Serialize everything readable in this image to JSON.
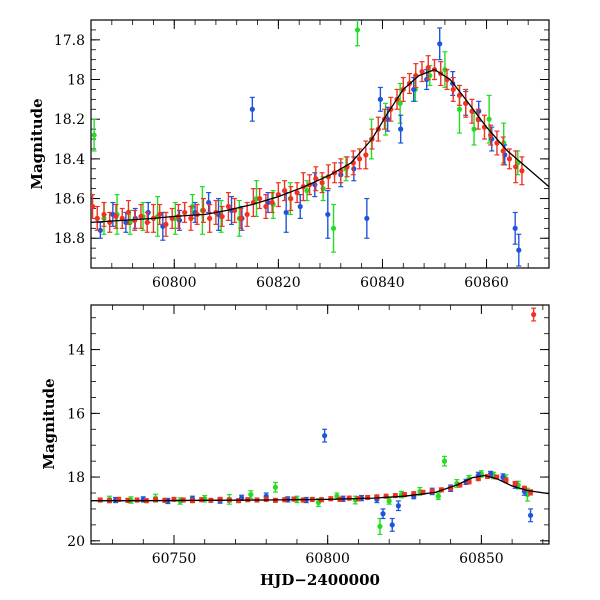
{
  "chart_data": [
    {
      "type": "scatter",
      "title": "",
      "xlabel": "",
      "ylabel": "Magnitude",
      "xlim": [
        60784,
        60872
      ],
      "ylim": [
        18.95,
        17.7
      ],
      "y_inverted": true,
      "grid": false,
      "legend": "none",
      "xticks": [
        60800,
        60820,
        60840,
        60860
      ],
      "xtick_labels": [
        "60800",
        "60820",
        "60840",
        "60860"
      ],
      "yticks": [
        17.8,
        18,
        18.2,
        18.4,
        18.6,
        18.8
      ],
      "ytick_labels": [
        "17.8",
        "18",
        "18.2",
        "18.4",
        "18.6",
        "18.8"
      ],
      "model_curve": {
        "color": "#000000",
        "x": [
          60784,
          60790,
          60796,
          60800,
          60806,
          60810,
          60815,
          60820,
          60825,
          60830,
          60834,
          60838,
          60841,
          60844,
          60847,
          60850,
          60853,
          60856,
          60860,
          60864,
          60868,
          60872
        ],
        "y": [
          18.72,
          18.71,
          18.7,
          18.69,
          18.68,
          18.66,
          18.63,
          18.59,
          18.54,
          18.48,
          18.42,
          18.3,
          18.17,
          18.05,
          17.98,
          17.95,
          18.0,
          18.1,
          18.24,
          18.36,
          18.45,
          18.54
        ]
      },
      "series": [
        {
          "color": "#22dd22",
          "x": [
            60784.6,
            60786.5,
            60789.0,
            60791.5,
            60794.0,
            60796.8,
            60800.2,
            60803.5,
            60805.4,
            60809.0,
            60812.5,
            60815.8,
            60819.0,
            60822.3,
            60825.5,
            60828.6,
            60830.6,
            60833.0,
            60835.2,
            60837.9,
            60840.6,
            60843.4,
            60846.3,
            60849.1,
            60852.0,
            60854.8,
            60857.6,
            60860.5,
            60863.3,
            60866.0
          ],
          "y": [
            18.28,
            18.7,
            18.68,
            18.72,
            18.69,
            18.69,
            18.7,
            18.64,
            18.66,
            18.69,
            18.7,
            18.6,
            18.63,
            18.6,
            18.56,
            18.55,
            18.75,
            18.45,
            17.75,
            18.3,
            18.2,
            18.12,
            18.05,
            17.98,
            17.95,
            18.15,
            18.25,
            18.2,
            18.32,
            18.42
          ],
          "err": [
            0.08,
            0.08,
            0.1,
            0.06,
            0.07,
            0.1,
            0.08,
            0.06,
            0.12,
            0.08,
            0.09,
            0.09,
            0.07,
            0.08,
            0.05,
            0.06,
            0.12,
            0.06,
            0.08,
            0.1,
            0.08,
            0.1,
            0.06,
            0.05,
            0.09,
            0.12,
            0.08,
            0.12,
            0.1,
            0.06
          ]
        },
        {
          "color": "#1f55dd",
          "x": [
            60785.8,
            60788.2,
            60790.7,
            60792.5,
            60795.0,
            60797.8,
            60801.0,
            60804.0,
            60806.6,
            60808.5,
            60811.0,
            60813.0,
            60815.0,
            60818.0,
            60821.5,
            60824.2,
            60827.0,
            60829.5,
            60832.0,
            60834.5,
            60837.0,
            60839.6,
            60841.0,
            60843.5,
            60846.0,
            60848.5,
            60851.0,
            60853.5,
            60856.0,
            60858.5,
            60861.0,
            60863.5,
            60865.5,
            60866.2
          ],
          "y": [
            18.76,
            18.68,
            18.72,
            18.7,
            18.67,
            18.74,
            18.71,
            18.67,
            18.62,
            18.68,
            18.66,
            18.7,
            18.15,
            18.62,
            18.67,
            18.64,
            18.53,
            18.68,
            18.48,
            18.45,
            18.7,
            18.1,
            18.2,
            18.25,
            18.05,
            18.0,
            17.82,
            18.02,
            18.12,
            18.16,
            18.3,
            18.38,
            18.75,
            18.86
          ],
          "err": [
            0.04,
            0.06,
            0.05,
            0.05,
            0.05,
            0.07,
            0.05,
            0.05,
            0.05,
            0.08,
            0.07,
            0.06,
            0.06,
            0.05,
            0.1,
            0.06,
            0.06,
            0.12,
            0.06,
            0.06,
            0.1,
            0.06,
            0.06,
            0.07,
            0.06,
            0.05,
            0.08,
            0.06,
            0.06,
            0.05,
            0.06,
            0.05,
            0.08,
            0.08
          ]
        },
        {
          "color": "#ee3322",
          "x": [
            60784.3,
            60785.2,
            60786.5,
            60787.6,
            60788.8,
            60790.0,
            60791.2,
            60792.4,
            60793.6,
            60794.8,
            60796.0,
            60797.2,
            60798.4,
            60799.6,
            60800.8,
            60802.0,
            60803.2,
            60804.4,
            60805.6,
            60806.8,
            60808.0,
            60809.2,
            60810.4,
            60811.6,
            60812.8,
            60814.0,
            60815.2,
            60816.4,
            60817.6,
            60818.8,
            60820.0,
            60821.2,
            60822.4,
            60823.6,
            60824.8,
            60826.0,
            60827.2,
            60828.4,
            60829.6,
            60830.8,
            60832.0,
            60833.2,
            60834.4,
            60835.6,
            60836.8,
            60838.0,
            60839.2,
            60840.4,
            60841.6,
            60842.8,
            60844.0,
            60845.2,
            60846.4,
            60847.6,
            60848.8,
            60850.0,
            60851.2,
            60852.4,
            60853.6,
            60854.8,
            60856.0,
            60857.2,
            60858.4,
            60859.6,
            60860.8,
            60862.0,
            60863.2,
            60864.4,
            60865.6,
            60866.8
          ],
          "y": [
            18.64,
            18.7,
            18.68,
            18.72,
            18.69,
            18.7,
            18.67,
            18.71,
            18.69,
            18.72,
            18.7,
            18.68,
            18.73,
            18.7,
            18.69,
            18.67,
            18.7,
            18.68,
            18.66,
            18.7,
            18.67,
            18.69,
            18.64,
            18.66,
            18.7,
            18.68,
            18.62,
            18.6,
            18.64,
            18.62,
            18.58,
            18.56,
            18.6,
            18.57,
            18.54,
            18.53,
            18.5,
            18.52,
            18.49,
            18.47,
            18.46,
            18.44,
            18.42,
            18.4,
            18.38,
            18.3,
            18.25,
            18.2,
            18.15,
            18.1,
            18.05,
            18.02,
            17.98,
            17.96,
            17.94,
            17.95,
            17.97,
            18.0,
            18.05,
            18.08,
            18.12,
            18.16,
            18.2,
            18.24,
            18.28,
            18.32,
            18.36,
            18.4,
            18.44,
            18.46
          ],
          "err": [
            0.06,
            0.06,
            0.06,
            0.05,
            0.06,
            0.05,
            0.06,
            0.05,
            0.06,
            0.05,
            0.07,
            0.05,
            0.06,
            0.05,
            0.06,
            0.05,
            0.06,
            0.05,
            0.06,
            0.07,
            0.06,
            0.05,
            0.07,
            0.06,
            0.05,
            0.06,
            0.07,
            0.05,
            0.06,
            0.05,
            0.06,
            0.05,
            0.06,
            0.05,
            0.07,
            0.05,
            0.06,
            0.05,
            0.06,
            0.05,
            0.06,
            0.05,
            0.06,
            0.05,
            0.07,
            0.05,
            0.06,
            0.05,
            0.06,
            0.05,
            0.06,
            0.05,
            0.06,
            0.05,
            0.06,
            0.05,
            0.06,
            0.05,
            0.06,
            0.05,
            0.07,
            0.06,
            0.05,
            0.06,
            0.05,
            0.06,
            0.07,
            0.05,
            0.08,
            0.07
          ]
        }
      ]
    },
    {
      "type": "scatter",
      "title": "",
      "xlabel": "HJD−2400000",
      "ylabel": "Magnitude",
      "xlim": [
        60723,
        60872
      ],
      "ylim": [
        20.1,
        12.6
      ],
      "y_inverted": true,
      "grid": false,
      "legend": "none",
      "xticks": [
        60750,
        60800,
        60850
      ],
      "xtick_labels": [
        "60750",
        "60800",
        "60850"
      ],
      "yticks": [
        14,
        16,
        18,
        20
      ],
      "ytick_labels": [
        "14",
        "16",
        "18",
        "20"
      ],
      "model_curve": {
        "color": "#000000",
        "x": [
          60723,
          60740,
          60760,
          60780,
          60800,
          60815,
          60825,
          60835,
          60842,
          60847,
          60851,
          60855,
          60860,
          60865,
          60872
        ],
        "y": [
          18.74,
          18.74,
          18.73,
          18.72,
          18.7,
          18.66,
          18.6,
          18.48,
          18.25,
          18.02,
          17.95,
          18.05,
          18.28,
          18.42,
          18.52
        ]
      },
      "series": [
        {
          "color": "#22dd22",
          "x": [
            60729,
            60736,
            60744,
            60752,
            60760,
            60768,
            60775,
            60783,
            60790,
            60797,
            60803,
            60809,
            60817,
            60820,
            60824,
            60830,
            60836,
            60838,
            60842,
            60846,
            60850,
            60854,
            60858,
            60862,
            60865
          ],
          "y": [
            18.7,
            18.72,
            18.66,
            18.75,
            18.68,
            18.7,
            18.55,
            18.32,
            18.7,
            18.8,
            18.6,
            18.72,
            19.55,
            18.75,
            18.55,
            18.45,
            18.6,
            17.5,
            18.2,
            18.05,
            17.9,
            17.95,
            18.05,
            18.25,
            18.55
          ],
          "err": [
            0.1,
            0.1,
            0.12,
            0.1,
            0.1,
            0.15,
            0.12,
            0.15,
            0.1,
            0.12,
            0.1,
            0.12,
            0.25,
            0.1,
            0.1,
            0.12,
            0.1,
            0.15,
            0.12,
            0.1,
            0.1,
            0.1,
            0.12,
            0.12,
            0.2
          ]
        },
        {
          "color": "#1f55dd",
          "x": [
            60731,
            60740,
            60748,
            60756,
            60765,
            60772,
            60780,
            60787,
            60793,
            60799,
            60805,
            60811,
            60816,
            60818,
            60821,
            60823,
            60828,
            60834,
            60840,
            60845,
            60849,
            60853,
            60857,
            60861,
            60864,
            60866
          ],
          "y": [
            18.72,
            18.7,
            18.75,
            18.68,
            18.74,
            18.65,
            18.6,
            18.7,
            18.72,
            16.7,
            18.68,
            18.66,
            18.7,
            19.15,
            19.5,
            18.9,
            18.6,
            18.45,
            18.35,
            18.15,
            17.95,
            17.9,
            18.0,
            18.25,
            18.45,
            19.2
          ],
          "err": [
            0.08,
            0.08,
            0.08,
            0.08,
            0.08,
            0.08,
            0.1,
            0.08,
            0.08,
            0.2,
            0.08,
            0.08,
            0.1,
            0.15,
            0.2,
            0.15,
            0.08,
            0.1,
            0.1,
            0.08,
            0.1,
            0.08,
            0.1,
            0.1,
            0.12,
            0.2
          ]
        },
        {
          "color": "#ee3322",
          "x": [
            60726,
            60729,
            60732,
            60735,
            60738,
            60741,
            60744,
            60747,
            60750,
            60753,
            60756,
            60759,
            60762,
            60765,
            60768,
            60771,
            60774,
            60777,
            60780,
            60783,
            60786,
            60789,
            60792,
            60795,
            60798,
            60801,
            60804,
            60807,
            60810,
            60813,
            60816,
            60819,
            60822,
            60825,
            60828,
            60831,
            60834,
            60837,
            60840,
            60843,
            60846,
            60849,
            60852,
            60855,
            60858,
            60861,
            60864,
            60866,
            60867
          ],
          "y": [
            18.72,
            18.74,
            18.7,
            18.73,
            18.72,
            18.74,
            18.71,
            18.73,
            18.7,
            18.72,
            18.74,
            18.71,
            18.73,
            18.7,
            18.72,
            18.74,
            18.71,
            18.72,
            18.7,
            18.73,
            18.71,
            18.69,
            18.72,
            18.7,
            18.71,
            18.68,
            18.7,
            18.66,
            18.68,
            18.64,
            18.62,
            18.6,
            18.58,
            18.55,
            18.52,
            18.48,
            18.45,
            18.4,
            18.35,
            18.25,
            18.15,
            18.05,
            17.98,
            18.0,
            18.1,
            18.2,
            18.35,
            18.48,
            12.9
          ],
          "err": [
            0.06,
            0.06,
            0.06,
            0.06,
            0.06,
            0.06,
            0.06,
            0.06,
            0.06,
            0.06,
            0.06,
            0.06,
            0.06,
            0.06,
            0.06,
            0.06,
            0.06,
            0.06,
            0.06,
            0.06,
            0.06,
            0.06,
            0.06,
            0.06,
            0.06,
            0.06,
            0.06,
            0.06,
            0.06,
            0.06,
            0.06,
            0.06,
            0.06,
            0.06,
            0.06,
            0.06,
            0.06,
            0.06,
            0.06,
            0.06,
            0.06,
            0.06,
            0.06,
            0.06,
            0.06,
            0.06,
            0.06,
            0.08,
            0.2
          ]
        }
      ]
    }
  ]
}
